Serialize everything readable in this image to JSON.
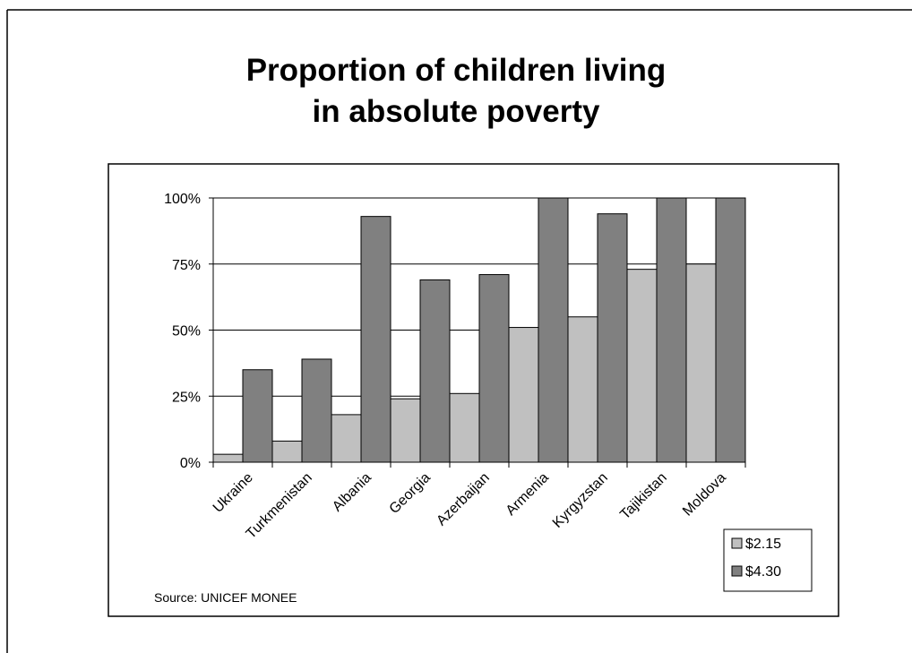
{
  "title_lines": [
    "Proportion of children living",
    "in absolute poverty"
  ],
  "source": "Source: UNICEF MONEE",
  "chart_data": {
    "type": "bar",
    "title": "Proportion of children living in absolute poverty",
    "categories": [
      "Ukraine",
      "Turkmenistan",
      "Albania",
      "Georgia",
      "Azerbaijan",
      "Armenia",
      "Kyrgyzstan",
      "Tajikistan",
      "Moldova"
    ],
    "series": [
      {
        "name": "$2.15",
        "values": [
          3,
          8,
          18,
          24,
          26,
          51,
          55,
          73,
          75
        ],
        "color": "#c0c0c0"
      },
      {
        "name": "$4.30",
        "values": [
          35,
          39,
          93,
          69,
          71,
          100,
          94,
          100,
          100
        ],
        "color": "#808080"
      }
    ],
    "y_tick_labels": [
      "0%",
      "25%",
      "50%",
      "75%",
      "100%"
    ],
    "ylim": [
      0,
      100
    ],
    "y_ticks": [
      0,
      25,
      50,
      75,
      100
    ],
    "grid": true,
    "legend_position": "bottom-right",
    "xlabel": "",
    "ylabel": ""
  }
}
